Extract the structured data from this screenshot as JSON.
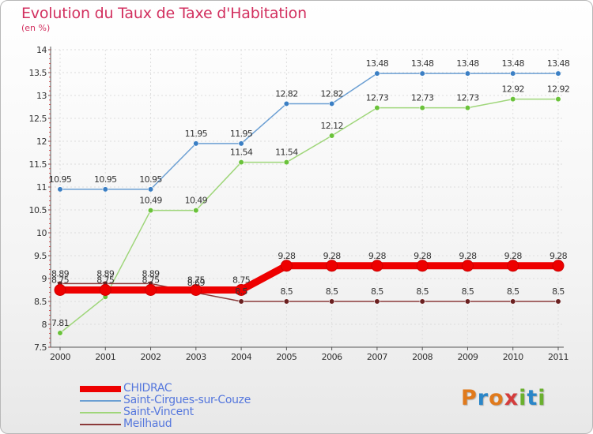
{
  "header": {
    "title": "Evolution du Taux de Taxe d'Habitation",
    "subtitle": "(en %)"
  },
  "logo": {
    "letters": [
      "P",
      "r",
      "o",
      "x",
      "i",
      "t",
      "i"
    ],
    "colors": [
      "#e07a1c",
      "#2a86c8",
      "#e07a1c",
      "#d43c3c",
      "#6ab02e",
      "#2a86c8",
      "#6ab02e"
    ]
  },
  "chart_data": {
    "type": "line",
    "x": [
      2000,
      2001,
      2002,
      2003,
      2004,
      2005,
      2006,
      2007,
      2008,
      2009,
      2010,
      2011
    ],
    "ylim": [
      7.5,
      14
    ],
    "y_ticks": [
      7.5,
      8,
      8.5,
      9,
      9.5,
      10,
      10.5,
      11,
      11.5,
      12,
      12.5,
      13,
      13.5,
      14
    ],
    "y_tick_labels": [
      "7.5",
      "8",
      "8.5",
      "9",
      "9.5",
      "10",
      "10.5",
      "11",
      "11.5",
      "12",
      "12.5",
      "13",
      "13.5",
      "14"
    ],
    "grid": true,
    "legend_position": "bottom-left",
    "series": [
      {
        "name": "Saint-Cirgues-sur-Couze",
        "color": "#6b9fd3",
        "marker_color": "#3b7fc4",
        "values": [
          10.95,
          10.95,
          10.95,
          11.95,
          11.95,
          12.82,
          12.82,
          13.48,
          13.48,
          13.48,
          13.48,
          13.48
        ],
        "labels": [
          "10.95",
          "10.95",
          "10.95",
          "11.95",
          "11.95",
          "12.82",
          "12.82",
          "13.48",
          "13.48",
          "13.48",
          "13.48",
          "13.48"
        ]
      },
      {
        "name": "Saint-Vincent",
        "color": "#9fd67a",
        "marker_color": "#6ac23a",
        "values": [
          7.81,
          8.6,
          10.49,
          10.49,
          11.54,
          11.54,
          12.12,
          12.73,
          12.73,
          12.73,
          12.92,
          12.92
        ],
        "labels": [
          "7.81",
          "",
          "10.49",
          "10.49",
          "11.54",
          "11.54",
          "12.12",
          "12.73",
          "12.73",
          "12.73",
          "12.92",
          "12.92"
        ]
      },
      {
        "name": "Meilhaud",
        "color": "#8b3a3a",
        "marker_color": "#6b2020",
        "values": [
          8.89,
          8.89,
          8.89,
          8.69,
          8.5,
          8.5,
          8.5,
          8.5,
          8.5,
          8.5,
          8.5,
          8.5
        ],
        "labels": [
          "8.89",
          "8.89",
          "8.89",
          "8.69",
          "8.5",
          "8.5",
          "8.5",
          "8.5",
          "8.5",
          "8.5",
          "8.5",
          "8.5"
        ]
      },
      {
        "name": "CHIDRAC",
        "color": "#ee0000",
        "marker_color": "#ee0000",
        "values": [
          8.75,
          8.75,
          8.75,
          8.75,
          8.75,
          9.28,
          9.28,
          9.28,
          9.28,
          9.28,
          9.28,
          9.28
        ],
        "labels": [
          "8.75",
          "8.75",
          "8.75",
          "8.75",
          "8.75",
          "9.28",
          "9.28",
          "9.28",
          "9.28",
          "9.28",
          "9.28",
          "9.28"
        ]
      }
    ],
    "legend_order": [
      "CHIDRAC",
      "Saint-Cirgues-sur-Couze",
      "Saint-Vincent",
      "Meilhaud"
    ]
  }
}
